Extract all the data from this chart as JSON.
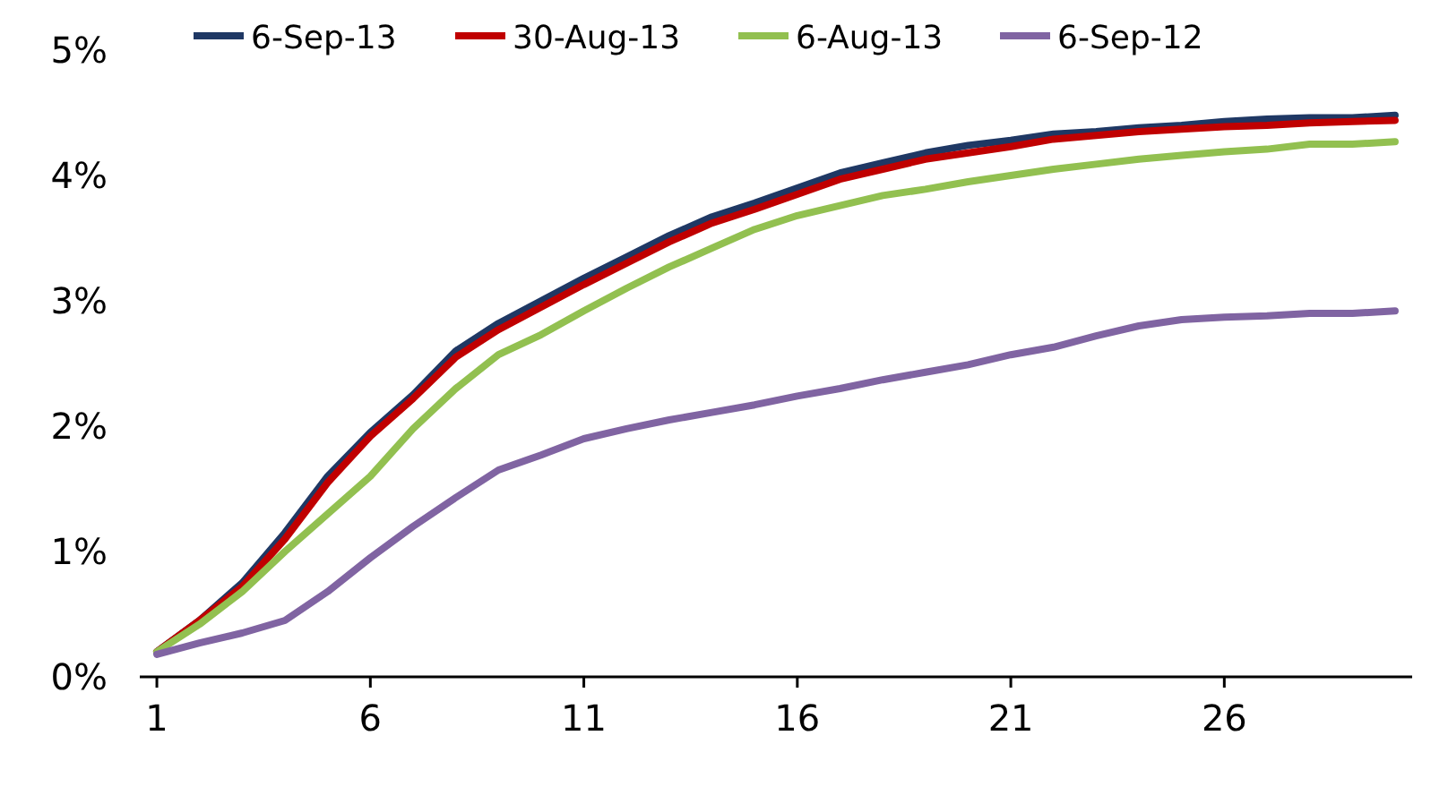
{
  "chart_data": {
    "type": "line",
    "x": [
      1,
      2,
      3,
      4,
      5,
      6,
      7,
      8,
      9,
      10,
      11,
      12,
      13,
      14,
      15,
      16,
      17,
      18,
      19,
      20,
      21,
      22,
      23,
      24,
      25,
      26,
      27,
      28,
      29,
      30
    ],
    "series": [
      {
        "name": "6-Sep-13",
        "color": "#1f3864",
        "values": [
          0.2,
          0.45,
          0.75,
          1.15,
          1.6,
          1.95,
          2.25,
          2.6,
          2.82,
          3.0,
          3.18,
          3.35,
          3.52,
          3.67,
          3.78,
          3.9,
          4.02,
          4.1,
          4.18,
          4.24,
          4.28,
          4.33,
          4.35,
          4.38,
          4.4,
          4.43,
          4.45,
          4.46,
          4.46,
          4.48
        ]
      },
      {
        "name": "30-Aug-13",
        "color": "#c00000",
        "values": [
          0.2,
          0.45,
          0.72,
          1.1,
          1.55,
          1.92,
          2.22,
          2.55,
          2.77,
          2.95,
          3.13,
          3.3,
          3.47,
          3.62,
          3.73,
          3.85,
          3.97,
          4.05,
          4.13,
          4.18,
          4.23,
          4.29,
          4.32,
          4.35,
          4.37,
          4.39,
          4.4,
          4.42,
          4.43,
          4.44
        ]
      },
      {
        "name": "6-Aug-13",
        "color": "#92c050",
        "values": [
          0.2,
          0.42,
          0.68,
          1.0,
          1.3,
          1.6,
          1.98,
          2.3,
          2.57,
          2.73,
          2.92,
          3.1,
          3.27,
          3.42,
          3.57,
          3.68,
          3.76,
          3.84,
          3.89,
          3.95,
          4.0,
          4.05,
          4.09,
          4.13,
          4.16,
          4.19,
          4.21,
          4.25,
          4.25,
          4.27
        ]
      },
      {
        "name": "6-Sep-12",
        "color": "#8064a2",
        "values": [
          0.18,
          0.27,
          0.35,
          0.45,
          0.68,
          0.95,
          1.2,
          1.43,
          1.65,
          1.77,
          1.9,
          1.98,
          2.05,
          2.11,
          2.17,
          2.24,
          2.3,
          2.37,
          2.43,
          2.49,
          2.57,
          2.63,
          2.72,
          2.8,
          2.85,
          2.87,
          2.88,
          2.9,
          2.9,
          2.92
        ]
      }
    ],
    "xlim": [
      0.6,
      30.4
    ],
    "xticks": [
      1,
      6,
      11,
      16,
      21,
      26
    ],
    "ylim": [
      0,
      5
    ],
    "yticks": [
      {
        "value": 0,
        "label": "0%"
      },
      {
        "value": 1,
        "label": "1%"
      },
      {
        "value": 2,
        "label": "2%"
      },
      {
        "value": 3,
        "label": "3%"
      },
      {
        "value": 4,
        "label": "4%"
      },
      {
        "value": 5,
        "label": "5%"
      }
    ],
    "grid": false,
    "legend": "top",
    "marker": "none",
    "line_style": "solid"
  }
}
